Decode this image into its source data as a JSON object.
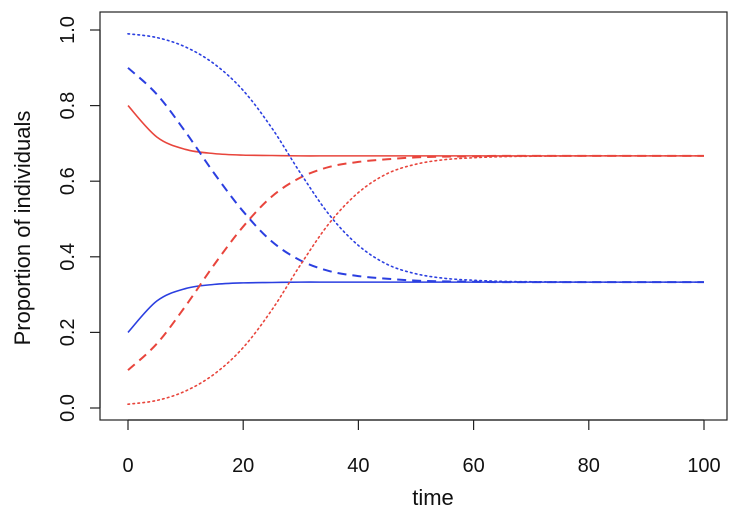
{
  "chart_data": {
    "type": "line",
    "title": "",
    "xlabel": "time",
    "ylabel": "Proportion of individuals",
    "xlim": [
      0,
      100
    ],
    "ylim": [
      0,
      1
    ],
    "xticks": [
      0,
      20,
      40,
      60,
      80,
      100
    ],
    "yticks": [
      0.0,
      0.2,
      0.4,
      0.6,
      0.8,
      1.0
    ],
    "xtick_labels": [
      "0",
      "20",
      "40",
      "60",
      "80",
      "100"
    ],
    "ytick_labels": [
      "0.0",
      "0.2",
      "0.4",
      "0.6",
      "0.8",
      "1.0"
    ],
    "grid": false,
    "legend": "none",
    "x": [
      0,
      5,
      10,
      15,
      20,
      25,
      30,
      35,
      40,
      45,
      50,
      55,
      60,
      65,
      70,
      80,
      90,
      100
    ],
    "series": [
      {
        "name": "red solid",
        "color": "#e8453c",
        "style": "solid",
        "values": [
          0.8,
          0.717,
          0.684,
          0.673,
          0.669,
          0.668,
          0.667,
          0.667,
          0.667,
          0.667,
          0.667,
          0.667,
          0.667,
          0.667,
          0.667,
          0.667,
          0.667,
          0.667
        ]
      },
      {
        "name": "blue solid",
        "color": "#2b3fe0",
        "style": "solid",
        "values": [
          0.2,
          0.283,
          0.316,
          0.327,
          0.331,
          0.332,
          0.333,
          0.333,
          0.333,
          0.333,
          0.333,
          0.333,
          0.333,
          0.333,
          0.333,
          0.333,
          0.333,
          0.333
        ]
      },
      {
        "name": "red dashed",
        "color": "#e8453c",
        "style": "dashed",
        "values": [
          0.1,
          0.17,
          0.27,
          0.38,
          0.48,
          0.56,
          0.61,
          0.638,
          0.651,
          0.658,
          0.663,
          0.665,
          0.666,
          0.667,
          0.667,
          0.667,
          0.667,
          0.667
        ]
      },
      {
        "name": "blue dashed",
        "color": "#2b3fe0",
        "style": "dashed",
        "values": [
          0.9,
          0.83,
          0.73,
          0.62,
          0.52,
          0.44,
          0.39,
          0.362,
          0.349,
          0.342,
          0.337,
          0.335,
          0.334,
          0.333,
          0.333,
          0.333,
          0.333,
          0.333
        ]
      },
      {
        "name": "red dotted",
        "color": "#e8453c",
        "style": "dotted",
        "values": [
          0.01,
          0.02,
          0.045,
          0.09,
          0.16,
          0.26,
          0.38,
          0.49,
          0.57,
          0.62,
          0.645,
          0.657,
          0.662,
          0.665,
          0.666,
          0.667,
          0.667,
          0.667
        ]
      },
      {
        "name": "blue dotted",
        "color": "#2b3fe0",
        "style": "dotted",
        "values": [
          0.99,
          0.98,
          0.955,
          0.91,
          0.84,
          0.74,
          0.62,
          0.51,
          0.43,
          0.38,
          0.355,
          0.343,
          0.338,
          0.335,
          0.334,
          0.333,
          0.333,
          0.333
        ]
      }
    ]
  }
}
